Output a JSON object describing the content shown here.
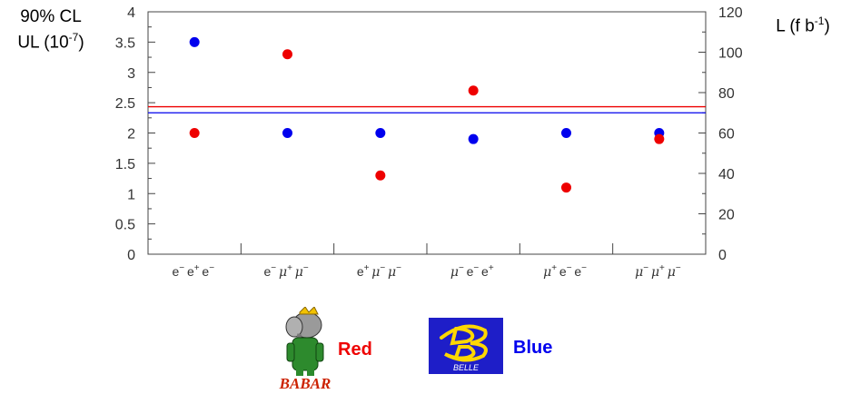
{
  "chart_data": {
    "type": "scatter",
    "y_left": {
      "label_line1": "90% CL",
      "label_line2_prefix": "UL (10",
      "label_line2_exp": "-7",
      "label_line2_suffix": ")",
      "range": [
        0,
        4
      ],
      "ticks": [
        "0",
        "0.5",
        "1",
        "1.5",
        "2",
        "2.5",
        "3",
        "3.5",
        "4"
      ]
    },
    "y_right": {
      "label_prefix": "L (f b",
      "label_exp": "-1",
      "label_suffix": ")",
      "range": [
        0,
        120
      ],
      "ticks": [
        "0",
        "20",
        "40",
        "60",
        "80",
        "100",
        "120"
      ]
    },
    "categories": [
      {
        "parts": [
          [
            "e",
            "−"
          ],
          [
            "e",
            "+"
          ],
          [
            "e",
            "−"
          ]
        ]
      },
      {
        "parts": [
          [
            "e",
            "−"
          ],
          [
            "μ",
            "+"
          ],
          [
            "μ",
            "−"
          ]
        ]
      },
      {
        "parts": [
          [
            "e",
            "+"
          ],
          [
            "μ",
            "−"
          ],
          [
            "μ",
            "−"
          ]
        ]
      },
      {
        "parts": [
          [
            "μ",
            "−"
          ],
          [
            "e",
            "−"
          ],
          [
            "e",
            "+"
          ]
        ]
      },
      {
        "parts": [
          [
            "μ",
            "+"
          ],
          [
            "e",
            "−"
          ],
          [
            "e",
            "−"
          ]
        ]
      },
      {
        "parts": [
          [
            "μ",
            "−"
          ],
          [
            "μ",
            "+"
          ],
          [
            "μ",
            "−"
          ]
        ]
      }
    ],
    "series": [
      {
        "name": "Blue",
        "color": "#0000ee",
        "values": [
          3.5,
          2.0,
          2.0,
          1.9,
          2.0,
          2.0
        ]
      },
      {
        "name": "Red",
        "color": "#ee0000",
        "values": [
          2.0,
          3.3,
          1.3,
          2.7,
          1.1,
          1.9
        ]
      }
    ],
    "luminosity_lines": [
      {
        "color": "#ee0000",
        "value": 73
      },
      {
        "color": "#0000ee",
        "value": 70
      }
    ],
    "legend": {
      "red_label": "Red",
      "blue_label": "Blue",
      "babar_logo_text": "BABAR",
      "belle_logo_text": "BELLE"
    }
  }
}
